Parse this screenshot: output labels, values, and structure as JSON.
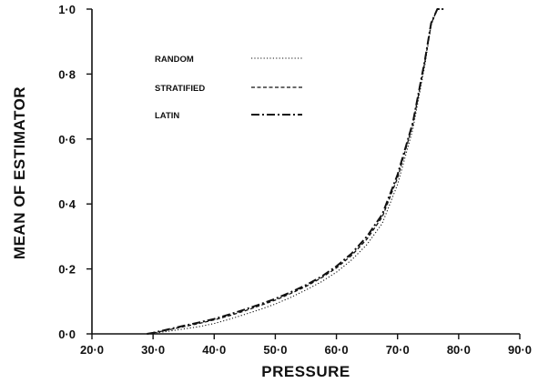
{
  "chart_data": {
    "type": "line",
    "xlabel": "PRESSURE",
    "ylabel": "MEAN OF ESTIMATOR",
    "xlim": [
      20.0,
      90.0
    ],
    "ylim": [
      0.0,
      1.0
    ],
    "x_ticks": [
      20,
      30,
      40,
      50,
      60,
      70,
      80,
      90
    ],
    "x_tick_labels": [
      "20·0",
      "30·0",
      "40·0",
      "50·0",
      "60·0",
      "70·0",
      "80·0",
      "90·0"
    ],
    "y_ticks": [
      0.0,
      0.2,
      0.4,
      0.6,
      0.8,
      1.0
    ],
    "y_tick_labels": [
      "0·0",
      "0·2",
      "0·4",
      "0·6",
      "0·8",
      "1·0"
    ],
    "grid": false,
    "legend_position": "top-left",
    "series": [
      {
        "name": "RANDOM",
        "style": "dotted",
        "color": "#111111",
        "x": [
          29.0,
          30.0,
          32.5,
          35.0,
          37.5,
          40.0,
          42.5,
          45.0,
          47.5,
          50.0,
          52.5,
          55.0,
          57.5,
          60.0,
          62.5,
          65.0,
          67.5,
          70.0,
          72.5,
          74.5,
          75.5,
          76.5,
          77.5
        ],
        "y": [
          0.0,
          0.002,
          0.008,
          0.015,
          0.022,
          0.032,
          0.045,
          0.06,
          0.075,
          0.092,
          0.112,
          0.135,
          0.16,
          0.19,
          0.228,
          0.275,
          0.34,
          0.46,
          0.63,
          0.83,
          0.95,
          1.0,
          1.0
        ]
      },
      {
        "name": "STRATIFIED",
        "style": "dashed",
        "color": "#111111",
        "x": [
          29.0,
          30.0,
          32.5,
          35.0,
          37.5,
          40.0,
          42.5,
          45.0,
          47.5,
          50.0,
          52.5,
          55.0,
          57.5,
          60.0,
          62.5,
          65.0,
          67.5,
          70.0,
          72.5,
          74.5,
          75.5,
          76.5,
          77.5
        ],
        "y": [
          0.0,
          0.003,
          0.012,
          0.022,
          0.032,
          0.043,
          0.056,
          0.071,
          0.087,
          0.104,
          0.124,
          0.146,
          0.172,
          0.203,
          0.242,
          0.292,
          0.36,
          0.48,
          0.645,
          0.84,
          0.955,
          1.0,
          1.0
        ]
      },
      {
        "name": "LATIN",
        "style": "dash-dot",
        "color": "#111111",
        "x": [
          29.0,
          30.0,
          32.5,
          35.0,
          37.5,
          40.0,
          42.5,
          45.0,
          47.5,
          50.0,
          52.5,
          55.0,
          57.5,
          60.0,
          62.5,
          65.0,
          67.5,
          70.0,
          72.5,
          74.5,
          75.5,
          76.5,
          77.5
        ],
        "y": [
          0.0,
          0.003,
          0.014,
          0.025,
          0.035,
          0.046,
          0.06,
          0.075,
          0.091,
          0.108,
          0.128,
          0.15,
          0.176,
          0.208,
          0.248,
          0.3,
          0.368,
          0.49,
          0.65,
          0.845,
          0.957,
          1.0,
          1.0
        ]
      }
    ]
  }
}
